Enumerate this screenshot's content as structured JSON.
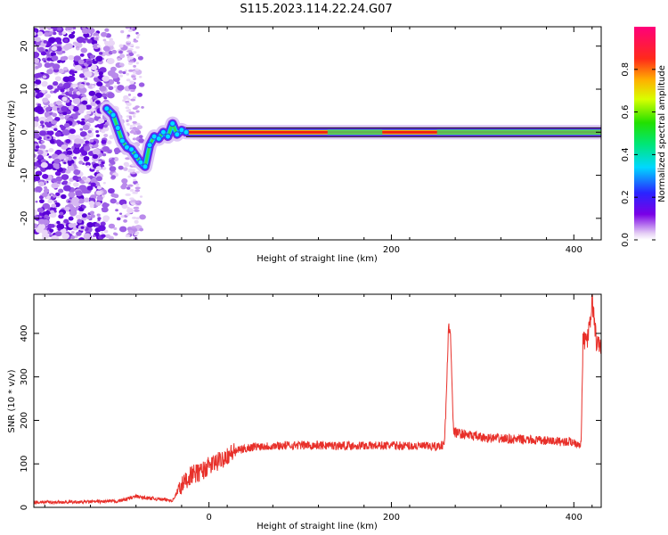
{
  "title": "S115.2023.114.22.24.G07",
  "chart_data": [
    {
      "type": "heatmap",
      "xlabel": "Height of straight line (km)",
      "ylabel": "Frequency (Hz)",
      "xlim": [
        -192,
        430
      ],
      "ylim": [
        -25,
        24.5
      ],
      "xticks": [
        0,
        200,
        400
      ],
      "yticks": [
        -20,
        -10,
        0,
        10,
        20
      ],
      "grid": false,
      "colorbar": {
        "label": "Normalized spectral amplitude",
        "ticks": [
          0.0,
          0.2,
          0.4,
          0.6,
          0.8
        ],
        "range": [
          0,
          1
        ],
        "colormap": "rainbow (purple-blue-cyan-green-yellow-red-magenta)"
      },
      "ridge": {
        "x": [
          -112,
          -105,
          -100,
          -95,
          -90,
          -85,
          -80,
          -75,
          -70,
          -65,
          -60,
          -55,
          -50,
          -45,
          -40,
          -35,
          -30,
          -25,
          0,
          100,
          200,
          300,
          400,
          430
        ],
        "y": [
          5.5,
          4,
          1,
          -2,
          -3.5,
          -4,
          -5.5,
          -7,
          -8,
          -3,
          -1,
          -1.5,
          0,
          -1,
          2,
          -0.5,
          0.5,
          0,
          0,
          0,
          0,
          0,
          0,
          0
        ]
      }
    },
    {
      "type": "line",
      "xlabel": "Height of straight line (km)",
      "ylabel": "SNR (10 * v/v)",
      "xlim": [
        -192,
        430
      ],
      "ylim": [
        0,
        490
      ],
      "xticks": [
        0,
        200,
        400
      ],
      "yticks": [
        0,
        100,
        200,
        300,
        400
      ],
      "grid": false,
      "color": "#e8302a",
      "series": [
        {
          "x": [
            -192,
            -150,
            -100,
            -80,
            -70,
            -60,
            -40,
            -30,
            -20,
            -10,
            0,
            10,
            20,
            30,
            40,
            50,
            80,
            100,
            150,
            200,
            250,
            258,
            260,
            262,
            263,
            265,
            268,
            270,
            280,
            300,
            350,
            400,
            408,
            410,
            415,
            418,
            420,
            425,
            430
          ],
          "y": [
            12,
            12,
            14,
            25,
            22,
            20,
            16,
            50,
            75,
            80,
            95,
            105,
            120,
            130,
            135,
            140,
            142,
            143,
            142,
            142,
            140,
            145,
            235,
            380,
            410,
            400,
            175,
            172,
            168,
            160,
            155,
            150,
            145,
            380,
            390,
            420,
            480,
            375,
            370
          ]
        }
      ]
    }
  ]
}
